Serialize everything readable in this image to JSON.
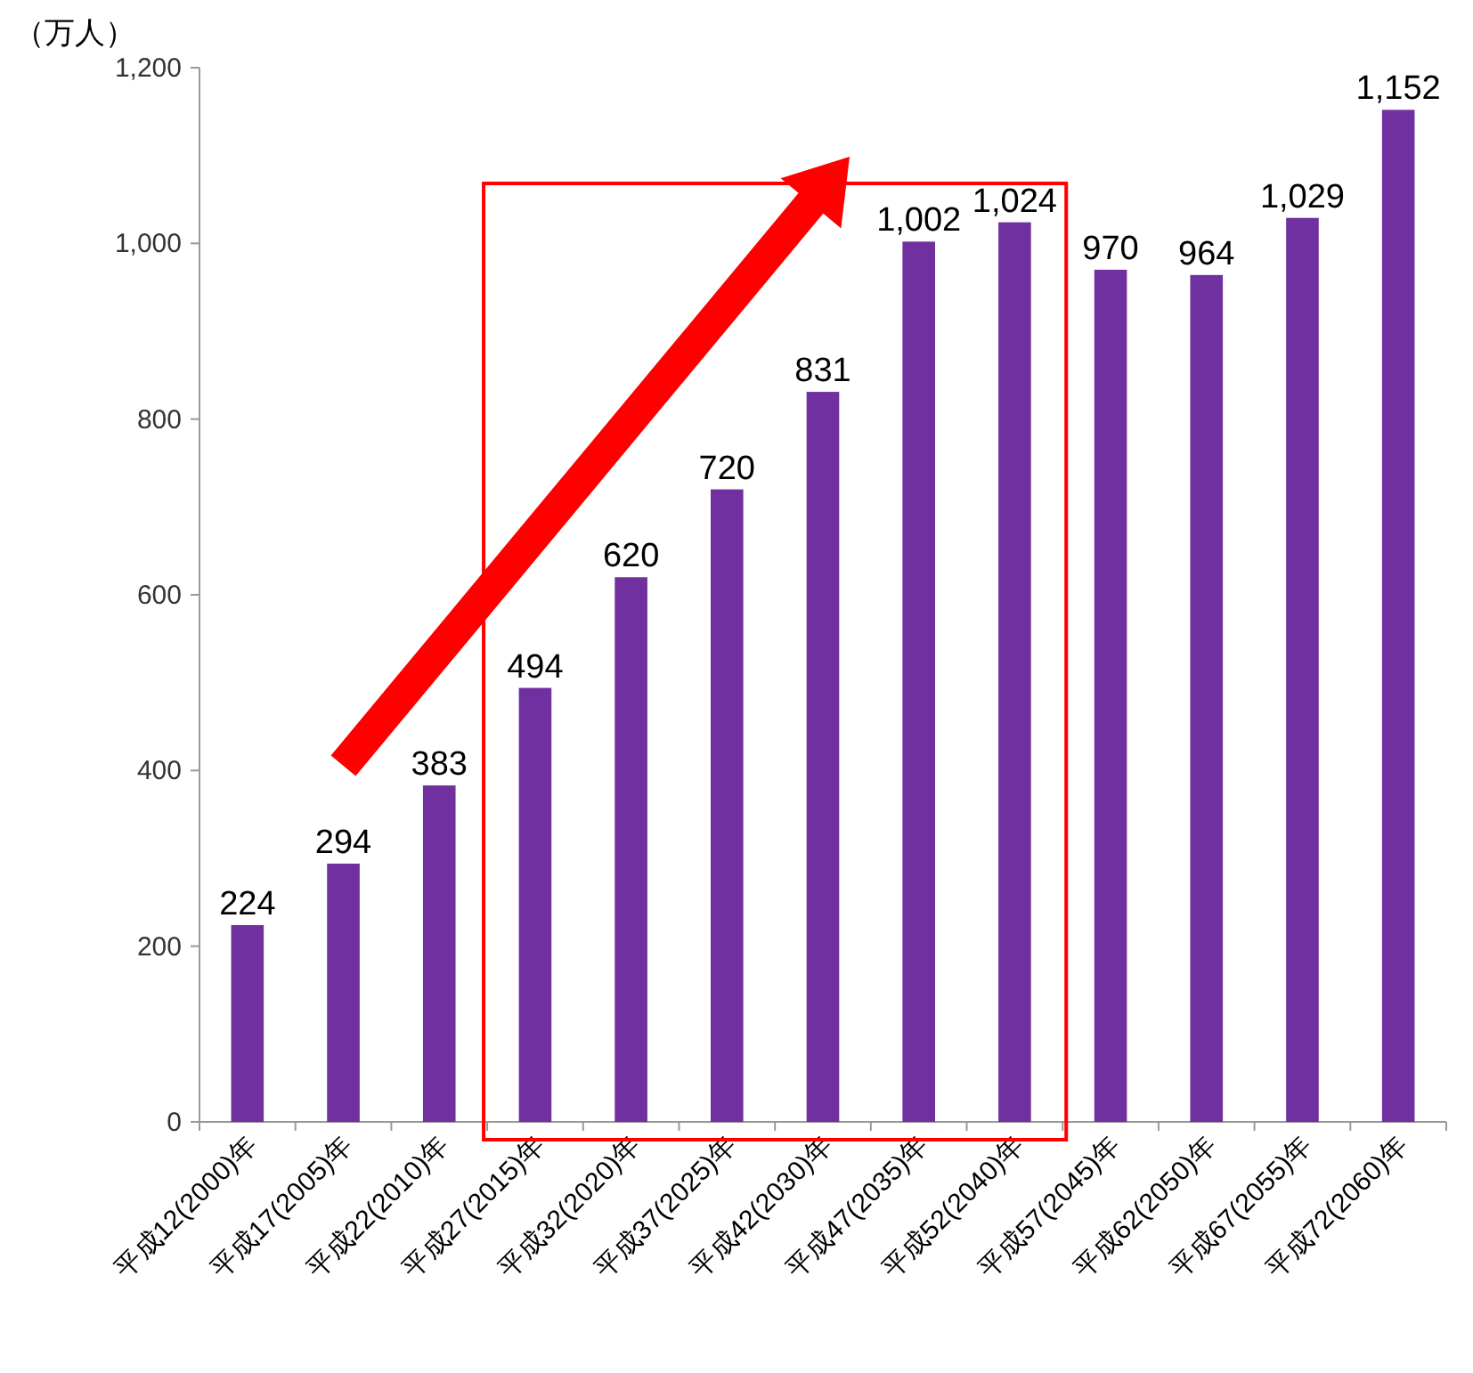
{
  "chart_data": {
    "type": "bar",
    "ylabel": "（万人）",
    "categories": [
      "平成12(2000)年",
      "平成17(2005)年",
      "平成22(2010)年",
      "平成27(2015)年",
      "平成32(2020)年",
      "平成37(2025)年",
      "平成42(2030)年",
      "平成47(2035)年",
      "平成52(2040)年",
      "平成57(2045)年",
      "平成62(2050)年",
      "平成67(2055)年",
      "平成72(2060)年"
    ],
    "values": [
      224,
      294,
      383,
      494,
      620,
      720,
      831,
      1002,
      1024,
      970,
      964,
      1029,
      1152
    ],
    "color": "#7030a0",
    "ylim": [
      0,
      1200
    ],
    "yticks": [
      0,
      200,
      400,
      600,
      800,
      {
        "value": 1000,
        "label": "1,000"
      },
      {
        "value": 1200,
        "label": "1,200"
      }
    ],
    "value_labels": [
      "224",
      "294",
      "383",
      "494",
      "620",
      "720",
      "831",
      "1,002",
      "1,024",
      "970",
      "964",
      "1,029",
      "1,152"
    ],
    "grid": false
  }
}
